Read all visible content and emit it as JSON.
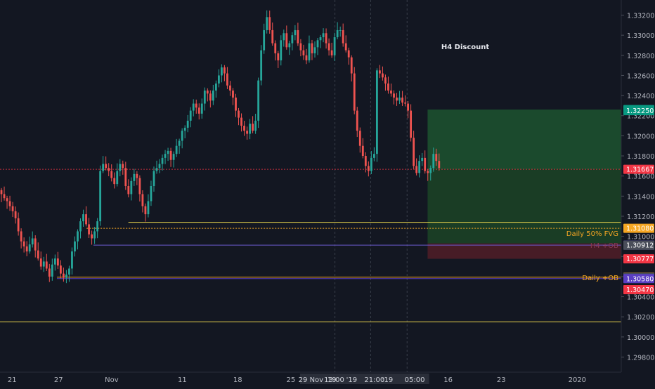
{
  "chart_data": {
    "type": "candlestick",
    "symbol_hint": "",
    "annotation": "H4 Discount",
    "y_range": [
      1.2965,
      1.3335
    ],
    "y_ticks": [
      "1.33200",
      "1.33000",
      "1.32800",
      "1.32600",
      "1.32400",
      "1.32200",
      "1.32000",
      "1.31800",
      "1.31600",
      "1.31400",
      "1.31200",
      "1.31000",
      "1.30800",
      "1.30600",
      "1.30400",
      "1.30200",
      "1.30000",
      "1.29800"
    ],
    "x_ticks": [
      {
        "label": "21",
        "x": 0.1
      },
      {
        "label": "27",
        "x": 6.2
      },
      {
        "label": "Nov",
        "x": 13.2
      },
      {
        "label": "11",
        "x": 22.5
      },
      {
        "label": "18",
        "x": 29.8
      },
      {
        "label": "25",
        "x": 36.8
      },
      {
        "label": "16",
        "x": 57.5
      },
      {
        "label": "23",
        "x": 64.5
      },
      {
        "label": "2020",
        "x": 74.5
      }
    ],
    "x_highlight_labels": [
      {
        "label": "29 Nov '19",
        "x": 40.3
      },
      {
        "label": "13:00",
        "x": 42.5
      },
      {
        "label": "'19",
        "x": 44.8
      },
      {
        "label": "21:00",
        "x": 47.8
      },
      {
        "label": ":19",
        "x": 49.5
      },
      {
        "label": "05:00",
        "x": 53.1
      }
    ],
    "x_range": [
      -1.5,
      80.3
    ],
    "session_dividers": [
      42.6,
      47.3,
      52.1
    ],
    "current_price": {
      "value": 1.31667,
      "label": "1.31667",
      "color": "#f23645"
    },
    "levels": [
      {
        "name": "Daily 50% FVG",
        "value": 1.3108,
        "label": "1.31080",
        "color": "#f5a623",
        "style": "dotted",
        "x_start": 9.9
      },
      {
        "name": "",
        "value": 1.3114,
        "label": "",
        "color": "#e8d44d",
        "style": "solid",
        "x_start": 15.4
      },
      {
        "name": "",
        "value": 1.30913,
        "label": "1.30913",
        "color": "#6a5acd",
        "style": "solid",
        "x_start": 10.8
      },
      {
        "name": "",
        "value": 1.30912,
        "label": "1.30912",
        "color": "#4a4e5a",
        "style": "none",
        "x_start": 0
      },
      {
        "name": "Daily +OB",
        "value": 1.30594,
        "label": "1.30594",
        "color": "#f5a623",
        "style": "solid",
        "x_start": 6.0
      },
      {
        "name": "",
        "value": 1.3058,
        "label": "1.30580",
        "color": "#5b3fc4",
        "style": "solid",
        "x_start": 6.0
      },
      {
        "name": "",
        "value": 1.30592,
        "label": "1.30592",
        "color": "#4a4e5a",
        "style": "none",
        "x_start": 0
      },
      {
        "name": "",
        "value": 1.3015,
        "label": "",
        "color": "#e8d44d",
        "style": "solid",
        "x_start": -1.5
      }
    ],
    "zone_labels": [
      {
        "text": "H4 +OB",
        "value": 1.30912,
        "color": "#8a3a55"
      },
      {
        "text": "Daily +OB",
        "value": 1.30594,
        "color": "#f5a623"
      }
    ],
    "boxes": [
      {
        "name": "profit-zone",
        "y_top": 1.32261,
        "y_bottom": 1.31667,
        "x_start": 54.8,
        "x_end": 80.3,
        "color": "#1b4d2e"
      },
      {
        "name": "profit-zone-lower",
        "y_top": 1.31667,
        "y_bottom": 1.3093,
        "x_start": 54.8,
        "x_end": 80.3,
        "color": "#1a3f26"
      },
      {
        "name": "loss-zone",
        "y_top": 1.3093,
        "y_bottom": 1.30777,
        "x_start": 54.8,
        "x_end": 80.3,
        "color": "#4a1c27"
      }
    ],
    "price_tags": [
      {
        "label": "1.32261",
        "value": 1.32261,
        "bg": "#089981"
      },
      {
        "label": "1.32250",
        "value": 1.3225,
        "bg": "#089981"
      },
      {
        "label": "1.31667",
        "value": 1.31667,
        "bg": "#f23645"
      },
      {
        "label": "1.31080",
        "value": 1.3108,
        "bg": "#f5a623"
      },
      {
        "label": "1.30913",
        "value": 1.30913,
        "bg": "#6a5acd"
      },
      {
        "label": "1.30912",
        "value": 1.30912,
        "bg": "#4a4e5a"
      },
      {
        "label": "1.30777",
        "value": 1.30777,
        "bg": "#f23645"
      },
      {
        "label": "1.30594",
        "value": 1.30594,
        "bg": "#f5a623"
      },
      {
        "label": "1.30592",
        "value": 1.30592,
        "bg": "#4a4e5a"
      },
      {
        "label": "1.30580",
        "value": 1.3058,
        "bg": "#5b3fc4"
      },
      {
        "label": "1.30470",
        "value": 1.3047,
        "bg": "#f23645"
      }
    ],
    "series": [
      {
        "name": "",
        "close_path": [
          1.3142,
          1.3138,
          1.3135,
          1.313,
          1.3125,
          1.3118,
          1.3105,
          1.3095,
          1.309,
          1.3085,
          1.3092,
          1.3098,
          1.3086,
          1.3078,
          1.307,
          1.3075,
          1.3068,
          1.306,
          1.3072,
          1.3078,
          1.3071,
          1.3063,
          1.3059,
          1.3062,
          1.3068,
          1.3085,
          1.3095,
          1.3105,
          1.3115,
          1.3122,
          1.3112,
          1.3102,
          1.3098,
          1.3105,
          1.3115,
          1.3165,
          1.3172,
          1.3168,
          1.3165,
          1.3158,
          1.3152,
          1.3165,
          1.3172,
          1.3168,
          1.315,
          1.3142,
          1.3155,
          1.3162,
          1.3158,
          1.3142,
          1.313,
          1.3122,
          1.3135,
          1.315,
          1.3165,
          1.3168,
          1.3172,
          1.3178,
          1.3182,
          1.3185,
          1.3176,
          1.3182,
          1.319,
          1.3195,
          1.3205,
          1.3208,
          1.3215,
          1.3225,
          1.3232,
          1.3228,
          1.3222,
          1.3232,
          1.3245,
          1.3242,
          1.3235,
          1.3245,
          1.3252,
          1.326,
          1.3268,
          1.3262,
          1.325,
          1.3245,
          1.3238,
          1.3225,
          1.3218,
          1.321,
          1.3205,
          1.3202,
          1.3212,
          1.3205,
          1.3215,
          1.3255,
          1.3285,
          1.3305,
          1.3318,
          1.3305,
          1.3292,
          1.3282,
          1.3275,
          1.3295,
          1.3302,
          1.3288,
          1.3292,
          1.33,
          1.3305,
          1.3292,
          1.3285,
          1.328,
          1.3275,
          1.3292,
          1.3282,
          1.3288,
          1.3295,
          1.3298,
          1.3302,
          1.3292,
          1.3285,
          1.328,
          1.3298,
          1.3305,
          1.3305,
          1.3292,
          1.3285,
          1.3278,
          1.3262,
          1.3225,
          1.3205,
          1.319,
          1.318,
          1.317,
          1.3165,
          1.3178,
          1.3182,
          1.3265,
          1.3262,
          1.3258,
          1.3252,
          1.3245,
          1.3242,
          1.3238,
          1.3235,
          1.3238,
          1.3233,
          1.3232,
          1.3225,
          1.3198,
          1.317,
          1.3163,
          1.3175,
          1.3178,
          1.3165,
          1.3163,
          1.3168,
          1.3182,
          1.3175,
          1.3168
        ]
      }
    ]
  },
  "ui": {
    "annotation_label": "H4 Discount",
    "fvg_label": "Daily 50% FVG",
    "h4_ob_label": "H4 +OB",
    "daily_ob_label": "Daily +OB"
  }
}
